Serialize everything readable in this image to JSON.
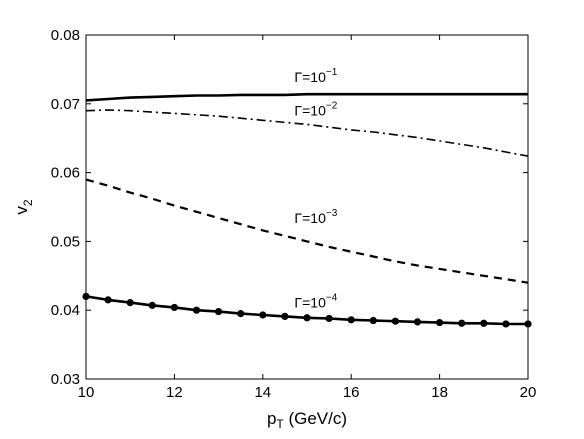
{
  "chart_data": {
    "type": "line",
    "xlabel": {
      "main": "p",
      "sub": "T",
      "rest": " (GeV/c)"
    },
    "ylabel": {
      "main": "v",
      "sub": "2"
    },
    "xlim": [
      10,
      20
    ],
    "ylim": [
      0.03,
      0.08
    ],
    "xticks": [
      "10",
      "12",
      "14",
      "16",
      "18",
      "20"
    ],
    "yticks": [
      "0.03",
      "0.04",
      "0.05",
      "0.06",
      "0.07",
      "0.08"
    ],
    "grid": false,
    "legend": "none",
    "series": [
      {
        "label": {
          "base": "Γ=10",
          "exp": "−1"
        },
        "style": "solid",
        "x": [
          10,
          10.5,
          11,
          11.5,
          12,
          12.5,
          13,
          13.5,
          14,
          14.5,
          15,
          15.5,
          16,
          16.5,
          17,
          17.5,
          18,
          18.5,
          19,
          19.5,
          20
        ],
        "y": [
          0.0705,
          0.0707,
          0.0709,
          0.071,
          0.0711,
          0.0712,
          0.0712,
          0.0713,
          0.0713,
          0.0713,
          0.0714,
          0.0714,
          0.0714,
          0.0714,
          0.0714,
          0.0714,
          0.0714,
          0.0714,
          0.0714,
          0.0714,
          0.0714
        ]
      },
      {
        "label": {
          "base": "Γ=10",
          "exp": "−2"
        },
        "style": "dashdot",
        "x": [
          10,
          10.5,
          11,
          11.5,
          12,
          12.5,
          13,
          13.5,
          14,
          14.5,
          15,
          15.5,
          16,
          16.5,
          17,
          17.5,
          18,
          18.5,
          19,
          19.5,
          20
        ],
        "y": [
          0.069,
          0.0691,
          0.069,
          0.0688,
          0.0686,
          0.0684,
          0.0682,
          0.0679,
          0.0676,
          0.0673,
          0.067,
          0.0666,
          0.0662,
          0.0659,
          0.0655,
          0.0651,
          0.0646,
          0.0641,
          0.0636,
          0.063,
          0.0624
        ]
      },
      {
        "label": {
          "base": "Γ=10",
          "exp": "−3"
        },
        "style": "dashed",
        "x": [
          10,
          10.5,
          11,
          11.5,
          12,
          12.5,
          13,
          13.5,
          14,
          14.5,
          15,
          15.5,
          16,
          16.5,
          17,
          17.5,
          18,
          18.5,
          19,
          19.5,
          20
        ],
        "y": [
          0.059,
          0.0581,
          0.0571,
          0.0562,
          0.0552,
          0.0543,
          0.0534,
          0.0525,
          0.0516,
          0.0508,
          0.05,
          0.0492,
          0.0485,
          0.0478,
          0.0471,
          0.0465,
          0.046,
          0.0455,
          0.045,
          0.0445,
          0.044
        ]
      },
      {
        "label": {
          "base": "Γ=10",
          "exp": "−4"
        },
        "style": "solid-markers",
        "x": [
          10,
          10.5,
          11,
          11.5,
          12,
          12.5,
          13,
          13.5,
          14,
          14.5,
          15,
          15.5,
          16,
          16.5,
          17,
          17.5,
          18,
          18.5,
          19,
          19.5,
          20
        ],
        "y": [
          0.042,
          0.0415,
          0.0411,
          0.0407,
          0.0404,
          0.04,
          0.0398,
          0.0395,
          0.0393,
          0.0391,
          0.0389,
          0.0388,
          0.0386,
          0.0385,
          0.0384,
          0.0383,
          0.0382,
          0.0381,
          0.0381,
          0.038,
          0.038
        ]
      }
    ]
  }
}
